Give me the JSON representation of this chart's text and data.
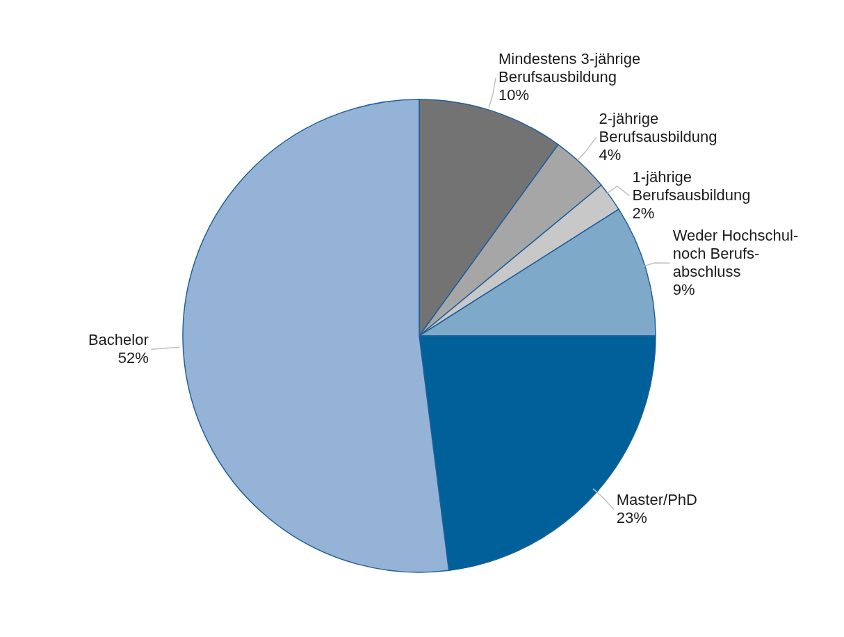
{
  "chart_data": {
    "type": "pie",
    "categories": [
      "Mindestens 3-jährige\nBerufsausbildung",
      "2-jährige\nBerufsausbildung",
      "1-jährige\nBerufsausbildung",
      "Weder Hochschul-\nnoch Berufs-\nabschluss",
      "Master/PhD",
      "Bachelor"
    ],
    "values": [
      10,
      4,
      2,
      9,
      23,
      52
    ],
    "value_labels": [
      "10%",
      "4%",
      "2%",
      "9%",
      "23%",
      "52%"
    ],
    "colors": [
      "#737373",
      "#a6a6a6",
      "#c8c8c8",
      "#7fa9c9",
      "#00609a",
      "#95b3d7"
    ]
  }
}
